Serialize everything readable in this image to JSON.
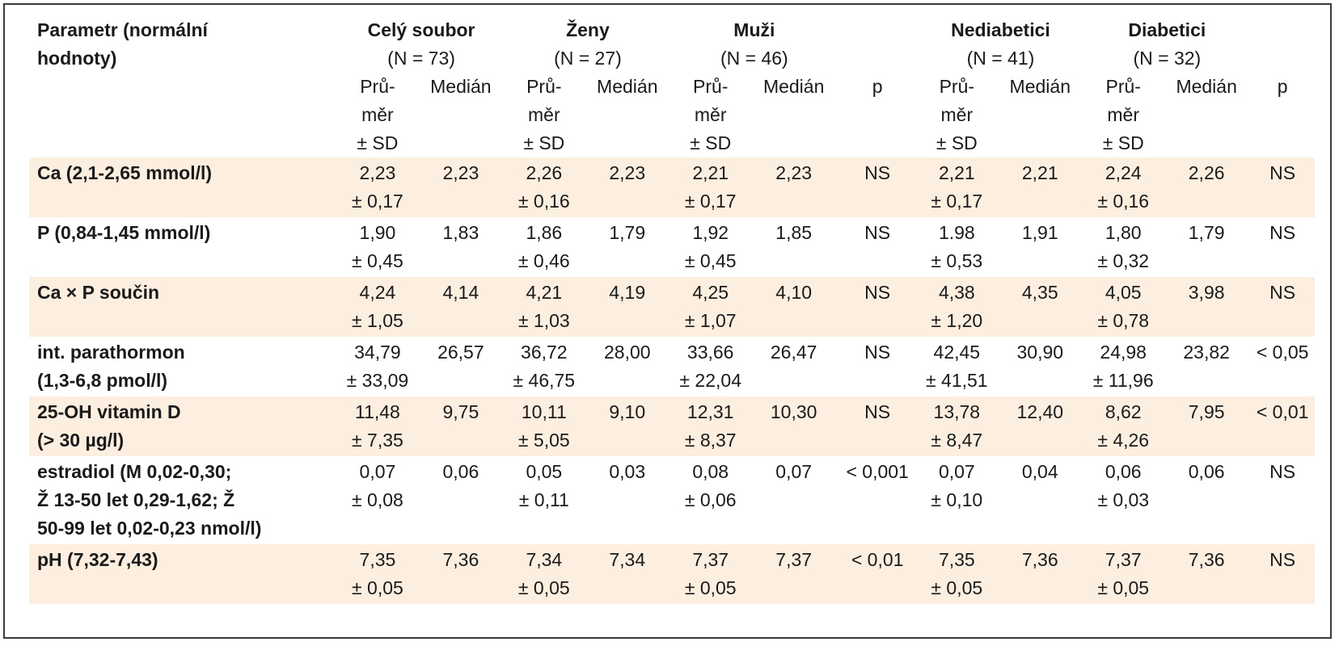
{
  "table": {
    "param_header": "Parametr (normální hodnoty)",
    "param_header_lines": [
      "Parametr (normální",
      "hodnoty)"
    ],
    "groups": [
      {
        "title": "Celý soubor",
        "n": "(N = 73)"
      },
      {
        "title": "Ženy",
        "n": "(N = 27)"
      },
      {
        "title": "Muži",
        "n": "(N = 46)"
      },
      {
        "title": "Nediabetici",
        "n": "(N = 41)"
      },
      {
        "title": "Diabetici",
        "n": "(N = 32)"
      }
    ],
    "subheaders": {
      "mean": [
        "Prů-",
        "měr",
        "± SD"
      ],
      "median": "Medián",
      "p": "p"
    },
    "rows": [
      {
        "label": [
          "Ca (2,1-2,65 mmol/l)"
        ],
        "shaded": true,
        "cells": [
          [
            "2,23",
            "± 0,17"
          ],
          [
            "2,23"
          ],
          [
            "2,26",
            "± 0,16"
          ],
          [
            "2,23"
          ],
          [
            "2,21",
            "± 0,17"
          ],
          [
            "2,23"
          ],
          [
            "NS"
          ],
          [
            "2,21",
            "± 0,17"
          ],
          [
            "2,21"
          ],
          [
            "2,24",
            "± 0,16"
          ],
          [
            "2,26"
          ],
          [
            "NS"
          ]
        ]
      },
      {
        "label": [
          "P (0,84-1,45 mmol/l)"
        ],
        "shaded": false,
        "cells": [
          [
            "1,90",
            "± 0,45"
          ],
          [
            "1,83"
          ],
          [
            "1,86",
            "± 0,46"
          ],
          [
            "1,79"
          ],
          [
            "1,92",
            "± 0,45"
          ],
          [
            "1,85"
          ],
          [
            "NS"
          ],
          [
            "1.98",
            "± 0,53"
          ],
          [
            "1,91"
          ],
          [
            "1,80",
            "± 0,32"
          ],
          [
            "1,79"
          ],
          [
            "NS"
          ]
        ]
      },
      {
        "label": [
          "Ca × P součin"
        ],
        "shaded": true,
        "cells": [
          [
            "4,24",
            "± 1,05"
          ],
          [
            "4,14"
          ],
          [
            "4,21",
            "± 1,03"
          ],
          [
            "4,19"
          ],
          [
            "4,25",
            "± 1,07"
          ],
          [
            "4,10"
          ],
          [
            "NS"
          ],
          [
            "4,38",
            "± 1,20"
          ],
          [
            "4,35"
          ],
          [
            "4,05",
            "± 0,78"
          ],
          [
            "3,98"
          ],
          [
            "NS"
          ]
        ]
      },
      {
        "label": [
          "int. parathormon",
          "(1,3-6,8 pmol/l)"
        ],
        "shaded": false,
        "cells": [
          [
            "34,79",
            "± 33,09"
          ],
          [
            "26,57"
          ],
          [
            "36,72",
            "± 46,75"
          ],
          [
            "28,00"
          ],
          [
            "33,66",
            "± 22,04"
          ],
          [
            "26,47"
          ],
          [
            "NS"
          ],
          [
            "42,45",
            "± 41,51"
          ],
          [
            "30,90"
          ],
          [
            "24,98",
            "± 11,96"
          ],
          [
            "23,82"
          ],
          [
            "< 0,05"
          ]
        ]
      },
      {
        "label": [
          "25-OH vitamin D",
          "(> 30 µg/l)"
        ],
        "shaded": true,
        "cells": [
          [
            "11,48",
            "± 7,35"
          ],
          [
            "9,75"
          ],
          [
            "10,11",
            "± 5,05"
          ],
          [
            "9,10"
          ],
          [
            "12,31",
            "± 8,37"
          ],
          [
            "10,30"
          ],
          [
            "NS"
          ],
          [
            "13,78",
            "± 8,47"
          ],
          [
            "12,40"
          ],
          [
            "8,62",
            "± 4,26"
          ],
          [
            "7,95"
          ],
          [
            "< 0,01"
          ]
        ]
      },
      {
        "label": [
          "estradiol (M 0,02-0,30;",
          "Ž 13-50 let 0,29-1,62; Ž",
          "50-99 let 0,02-0,23 nmol/l)"
        ],
        "shaded": false,
        "cells": [
          [
            "0,07",
            "± 0,08"
          ],
          [
            "0,06"
          ],
          [
            "0,05",
            "± 0,11"
          ],
          [
            "0,03"
          ],
          [
            "0,08",
            "± 0,06"
          ],
          [
            "0,07"
          ],
          [
            "< 0,001"
          ],
          [
            "0,07",
            "± 0,10"
          ],
          [
            "0,04"
          ],
          [
            "0,06",
            "± 0,03"
          ],
          [
            "0,06"
          ],
          [
            "NS"
          ]
        ]
      },
      {
        "label": [
          "pH (7,32-7,43)"
        ],
        "shaded": true,
        "cells": [
          [
            "7,35",
            "± 0,05"
          ],
          [
            "7,36"
          ],
          [
            "7,34",
            "± 0,05"
          ],
          [
            "7,34"
          ],
          [
            "7,37",
            "± 0,05"
          ],
          [
            "7,37"
          ],
          [
            "< 0,01"
          ],
          [
            "7,35",
            "± 0,05"
          ],
          [
            "7,36"
          ],
          [
            "7,37",
            "± 0,05"
          ],
          [
            "7,36"
          ],
          [
            "NS"
          ]
        ]
      }
    ]
  }
}
